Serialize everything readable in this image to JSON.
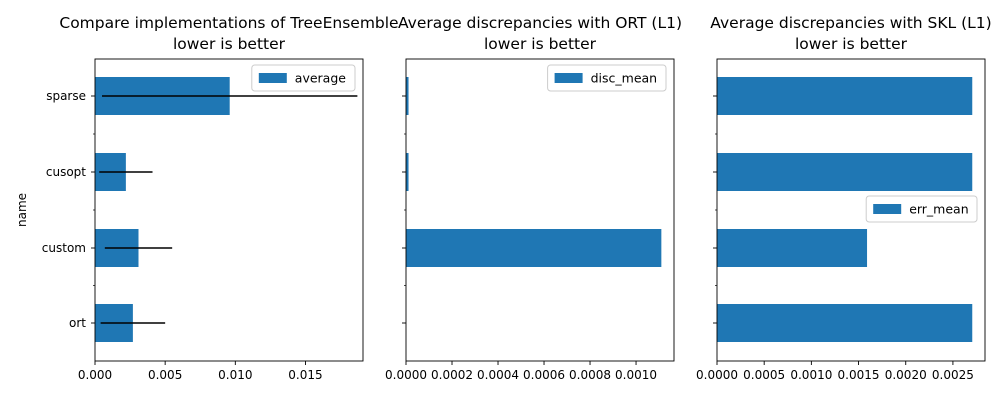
{
  "chart_data": [
    {
      "type": "bar",
      "orientation": "horizontal",
      "title": [
        "Compare implementations of TreeEnsemble",
        "lower is better"
      ],
      "ylabel": "name",
      "categories": [
        "ort",
        "custom",
        "cusopt",
        "sparse"
      ],
      "series": [
        {
          "name": "average",
          "values": [
            0.0027,
            0.0031,
            0.0022,
            0.0096
          ],
          "errors": [
            0.0023,
            0.0024,
            0.0019,
            0.0091
          ]
        }
      ],
      "xlim": [
        0,
        0.0191
      ],
      "xticks": [
        0,
        0.005,
        0.01,
        0.015
      ],
      "xtick_labels": [
        "0.000",
        "0.005",
        "0.010",
        "0.015"
      ],
      "ytick_labels": [
        "ort",
        "custom",
        "cusopt",
        "sparse"
      ],
      "legend": "top-right",
      "color": "#1f77b4"
    },
    {
      "type": "bar",
      "orientation": "horizontal",
      "title": [
        "Average discrepancies with ORT (L1)",
        "lower is better"
      ],
      "categories": [
        "ort",
        "custom",
        "cusopt",
        "sparse"
      ],
      "series": [
        {
          "name": "disc_mean",
          "values": [
            0.0,
            0.00111,
            1.1e-05,
            1.1e-05
          ]
        }
      ],
      "xlim": [
        0,
        0.001165
      ],
      "xticks": [
        0,
        0.0002,
        0.0004,
        0.0006,
        0.0008,
        0.001
      ],
      "xtick_labels": [
        "0.0000",
        "0.0002",
        "0.0004",
        "0.0006",
        "0.0008",
        "0.0010"
      ],
      "legend": "top-right",
      "color": "#1f77b4"
    },
    {
      "type": "bar",
      "orientation": "horizontal",
      "title": [
        "Average discrepancies with SKL (L1)",
        "lower is better"
      ],
      "categories": [
        "ort",
        "custom",
        "cusopt",
        "sparse"
      ],
      "series": [
        {
          "name": "err_mean",
          "values": [
            0.002705,
            0.00159,
            0.002705,
            0.002705
          ]
        }
      ],
      "xlim": [
        0,
        0.00284
      ],
      "xticks": [
        0,
        0.0005,
        0.001,
        0.0015,
        0.002,
        0.0025
      ],
      "xtick_labels": [
        "0.0000",
        "0.0005",
        "0.0010",
        "0.0015",
        "0.0020",
        "0.0025"
      ],
      "legend": "center-right",
      "color": "#1f77b4"
    }
  ]
}
